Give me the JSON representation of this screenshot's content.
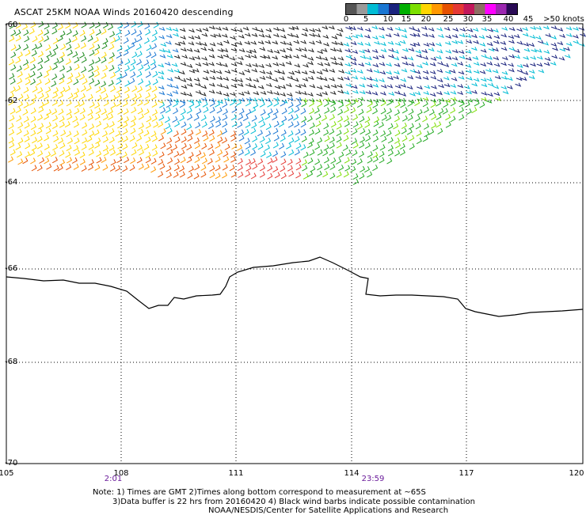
{
  "title": "ASCAT 25KM NOAA Winds 20160420 descending",
  "legend": {
    "colors": [
      "#555555",
      "#9a9a9a",
      "#00bcd4",
      "#1976d2",
      "#1a237e",
      "#00b000",
      "#7cdf00",
      "#ffd600",
      "#ff9800",
      "#e65100",
      "#e53935",
      "#c2185b",
      "#8d6e63",
      "#ff00ff",
      "#9c27b0",
      "#2a0a55"
    ],
    "labels": [
      "0",
      "5",
      "10",
      "15",
      "20",
      "25",
      "30",
      "35",
      "40",
      "45",
      ">50 knots"
    ]
  },
  "axes": {
    "lat_labels": [
      "-60",
      "-62",
      "-64",
      "-66",
      "-68",
      "-70"
    ],
    "lon_labels": [
      "105",
      "108",
      "111",
      "114",
      "117",
      "120"
    ]
  },
  "times": [
    "2:01",
    "23:59"
  ],
  "notes": {
    "line1": "Note: 1) Times are GMT 2)Times along bottom correspond to measurement at ~65S",
    "line2": "3)Data buffer is 22 hrs from 20160420 4) Black wind barbs indicate possible contamination",
    "line3": "NOAA/NESDIS/Center for Satellite Applications and Research"
  }
}
